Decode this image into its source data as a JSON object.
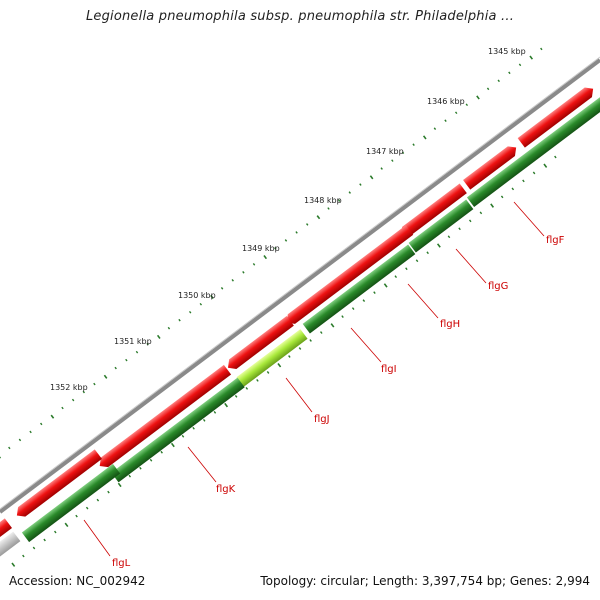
{
  "header": {
    "title": "Legionella pneumophila subsp. pneumophila str. Philadelphia ..."
  },
  "footer": {
    "accession": "Accession: NC_002942",
    "topology": "Topology: circular; Length: 3,397,754 bp; Genes: 2,994"
  },
  "colors": {
    "forward_gene": "#ee1111",
    "reverse_gene": "#2a8a2a",
    "highlight_gene": "#a8e83a",
    "backbone": "#8a8a8a",
    "tick": "#2a7a2a",
    "gene_label": "#cc0000"
  },
  "ruler": [
    {
      "label": "1345 kbp"
    },
    {
      "label": "1346 kbp"
    },
    {
      "label": "1347 kbp"
    },
    {
      "label": "1348 kbp"
    },
    {
      "label": "1349 kbp"
    },
    {
      "label": "1350 kbp"
    },
    {
      "label": "1351 kbp"
    },
    {
      "label": "1352 kbp"
    }
  ],
  "genes": [
    {
      "label": "flgF"
    },
    {
      "label": "flgG"
    },
    {
      "label": "flgH"
    },
    {
      "label": "flgI"
    },
    {
      "label": "flgJ"
    },
    {
      "label": "flgK"
    },
    {
      "label": "flgL"
    }
  ]
}
